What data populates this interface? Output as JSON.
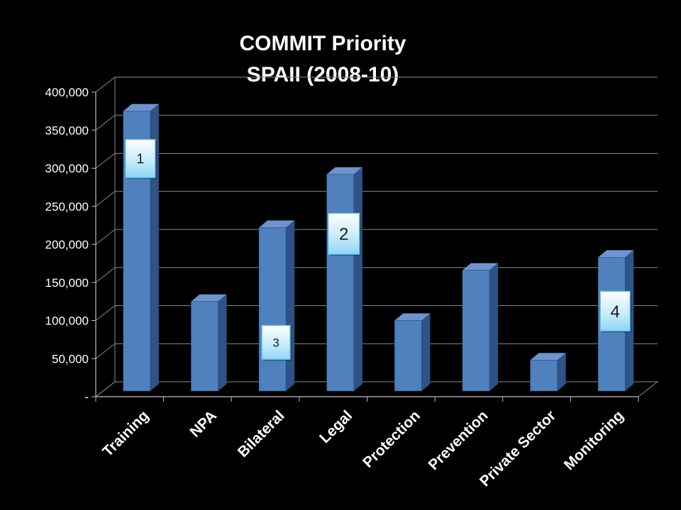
{
  "chart_data": {
    "type": "bar",
    "title": "COMMIT Priority",
    "subtitle": "SPAII (2008-10)",
    "xlabel": "",
    "ylabel": "",
    "ylim": [
      0,
      400000
    ],
    "yticks": [
      {
        "value": 0,
        "label": "-"
      },
      {
        "value": 50000,
        "label": "50,000"
      },
      {
        "value": 100000,
        "label": "100,000"
      },
      {
        "value": 150000,
        "label": "150,000"
      },
      {
        "value": 200000,
        "label": "200,000"
      },
      {
        "value": 250000,
        "label": "250,000"
      },
      {
        "value": 300000,
        "label": "300,000"
      },
      {
        "value": 350000,
        "label": "350,000"
      },
      {
        "value": 400000,
        "label": "400,000"
      }
    ],
    "categories": [
      "Training",
      "NPA",
      "Bilateral",
      "Legal",
      "Protection",
      "Prevention",
      "Private Sector",
      "Monitoring"
    ],
    "values": [
      375000,
      125000,
      222000,
      292000,
      100000,
      166000,
      48000,
      183000
    ],
    "grid": true,
    "bar_color": "#4f81bd",
    "annotations": [
      {
        "category": "Training",
        "label": "1"
      },
      {
        "category": "Legal",
        "label": "2"
      },
      {
        "category": "Bilateral",
        "label": "3"
      },
      {
        "category": "Monitoring",
        "label": "4"
      }
    ]
  }
}
